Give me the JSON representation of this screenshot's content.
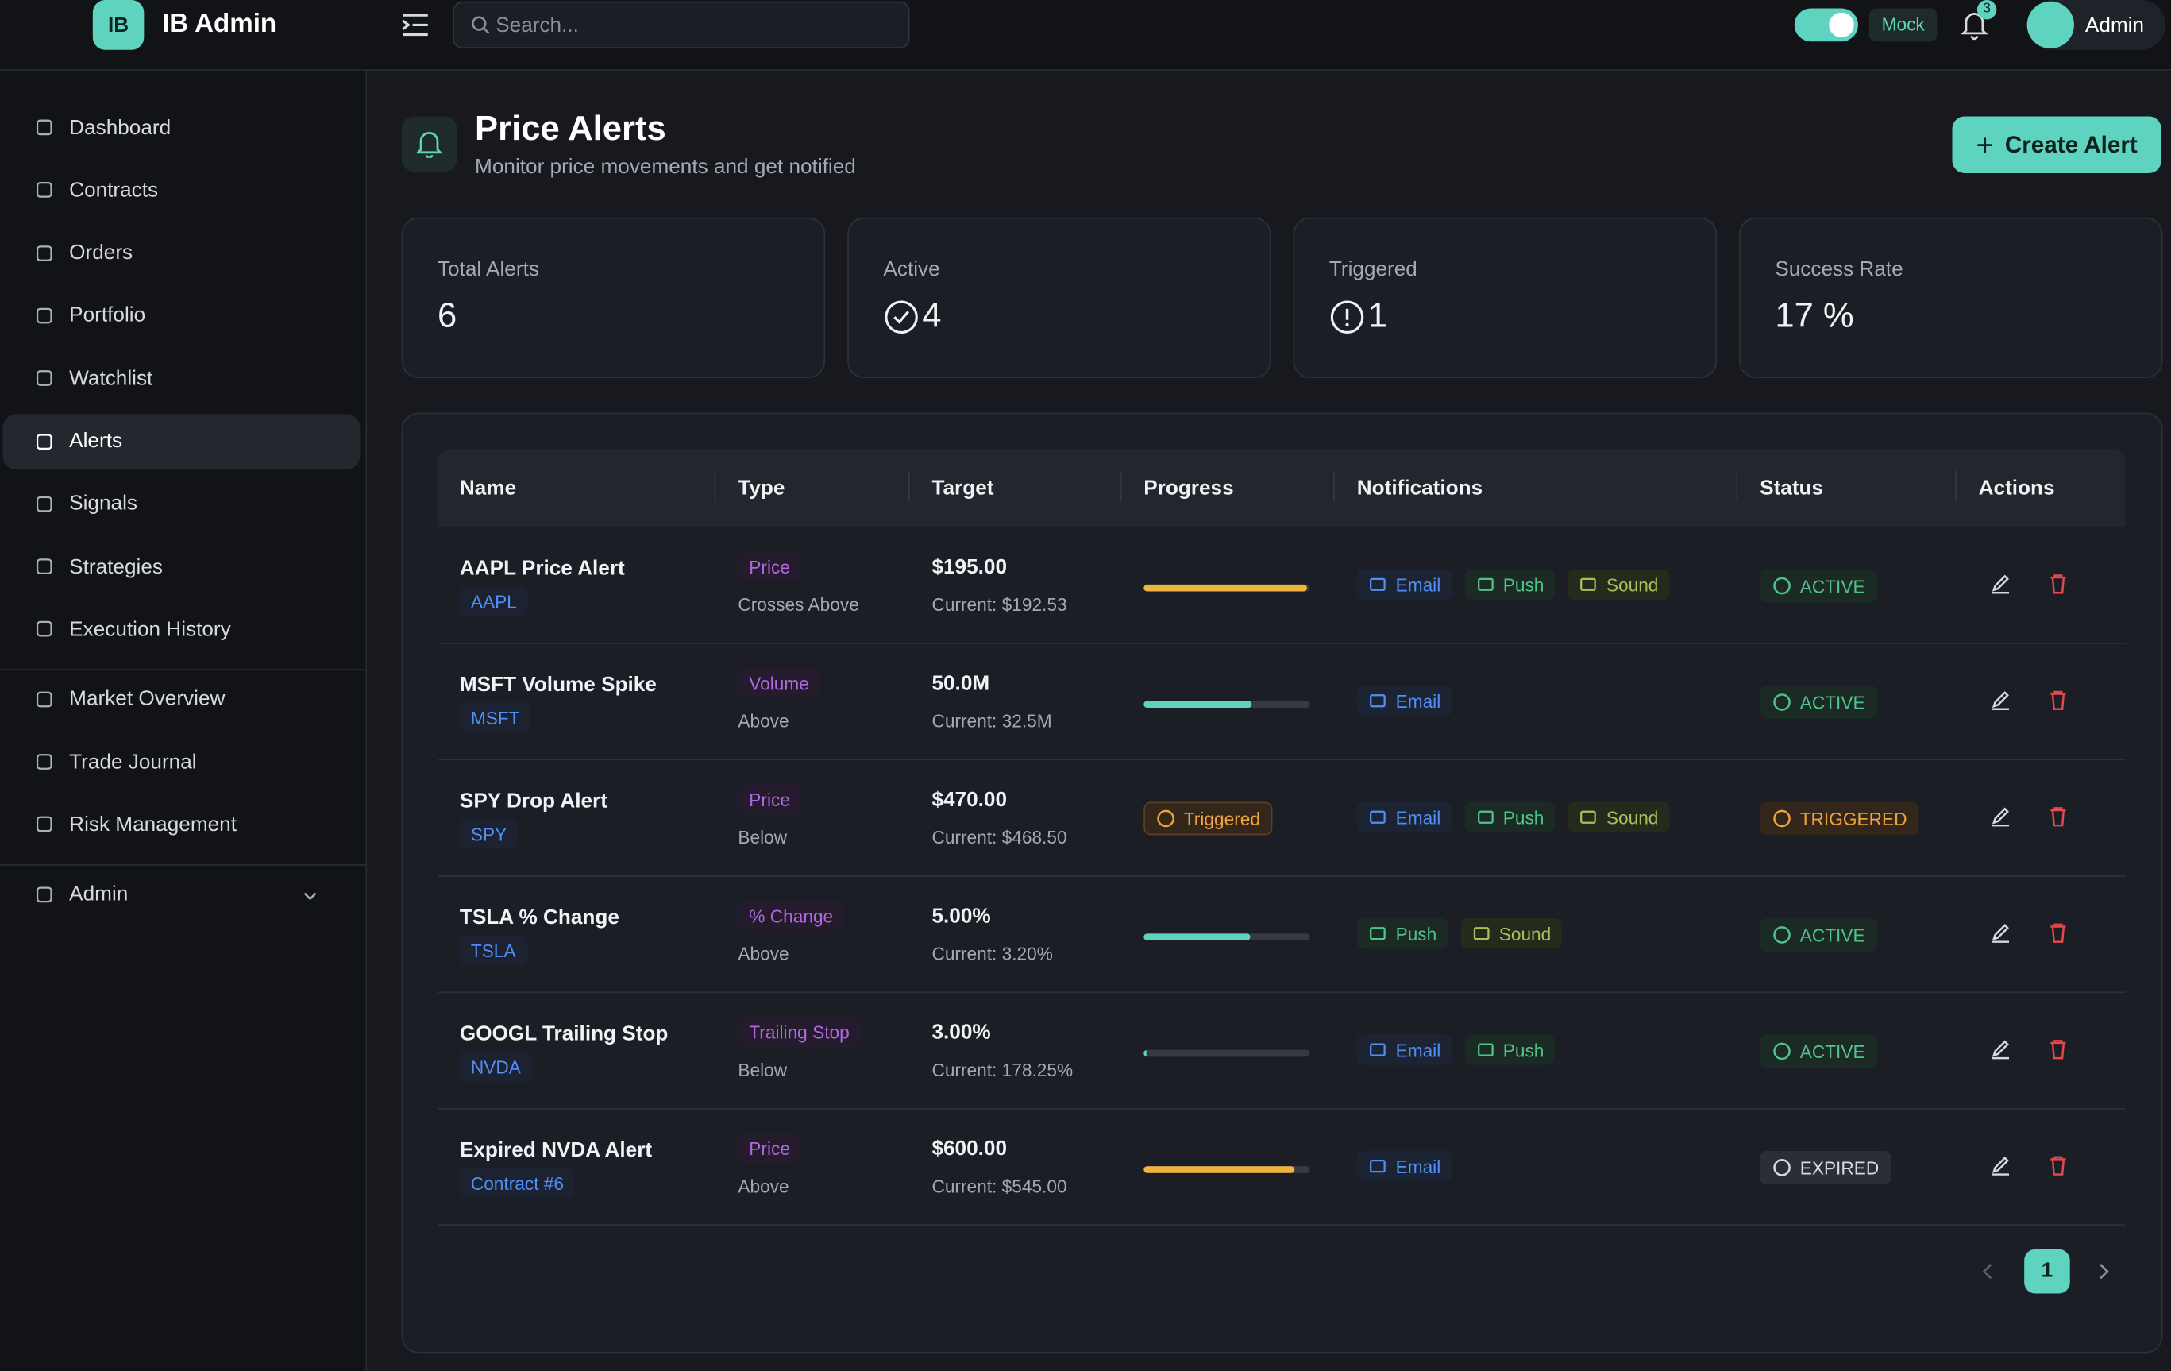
{
  "brand": {
    "logo": "IB",
    "name": "IB Admin"
  },
  "topbar": {
    "search_placeholder": "Search...",
    "mode": "Mock",
    "notification_count": "3",
    "user": "Admin"
  },
  "nav": {
    "groups": [
      [
        "Dashboard",
        "Contracts",
        "Orders",
        "Portfolio",
        "Watchlist",
        "Alerts",
        "Signals",
        "Strategies",
        "Execution History"
      ],
      [
        "Market Overview",
        "Trade Journal",
        "Risk Management"
      ],
      [
        "Admin"
      ]
    ],
    "active": "Alerts"
  },
  "page": {
    "title": "Price Alerts",
    "subtitle": "Monitor price movements and get notified",
    "create_button": "Create Alert"
  },
  "stats": [
    {
      "label": "Total Alerts",
      "value": "6"
    },
    {
      "label": "Active",
      "value": "4"
    },
    {
      "label": "Triggered",
      "value": "1"
    },
    {
      "label": "Success Rate",
      "value": "17 %"
    }
  ],
  "table": {
    "headers": [
      "Name",
      "Type",
      "Target",
      "Progress",
      "Notifications",
      "Status",
      "Actions"
    ],
    "rows": [
      {
        "name": "AAPL Price Alert",
        "symbol": "AAPL",
        "type": "Price",
        "condition": "Crosses Above",
        "target": "$195.00",
        "current": "Current: $192.53",
        "progress": 98.7,
        "notifications": [
          "Email",
          "Push",
          "Sound"
        ],
        "status": "ACTIVE"
      },
      {
        "name": "MSFT Volume Spike",
        "symbol": "MSFT",
        "type": "Volume",
        "condition": "Above",
        "target": "50.0M",
        "current": "Current: 32.5M",
        "progress": 65,
        "notifications": [
          "Email"
        ],
        "status": "ACTIVE"
      },
      {
        "name": "SPY Drop Alert",
        "symbol": "SPY",
        "type": "Price",
        "condition": "Below",
        "target": "$470.00",
        "current": "Current: $468.50",
        "progress_label": "Triggered",
        "notifications": [
          "Email",
          "Push",
          "Sound"
        ],
        "status": "TRIGGERED"
      },
      {
        "name": "TSLA % Change",
        "symbol": "TSLA",
        "type": "% Change",
        "condition": "Above",
        "target": "5.00%",
        "current": "Current: 3.20%",
        "progress": 64,
        "notifications": [
          "Push",
          "Sound"
        ],
        "status": "ACTIVE"
      },
      {
        "name": "GOOGL Trailing Stop",
        "symbol": "NVDA",
        "type": "Trailing Stop",
        "condition": "Below",
        "target": "3.00%",
        "current": "Current: 178.25%",
        "progress": 2,
        "notifications": [
          "Email",
          "Push"
        ],
        "status": "ACTIVE"
      },
      {
        "name": "Expired NVDA Alert",
        "symbol": "Contract #6",
        "type": "Price",
        "condition": "Above",
        "target": "$600.00",
        "current": "Current: $545.00",
        "progress": 90.8,
        "notifications": [
          "Email"
        ],
        "status": "EXPIRED"
      }
    ]
  },
  "pagination": {
    "current": "1"
  }
}
